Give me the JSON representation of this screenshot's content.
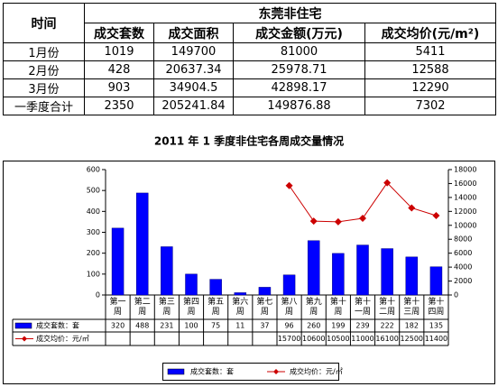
{
  "table": {
    "header": {
      "time": "时间",
      "group": "东莞非住宅",
      "columns": [
        "成交套数",
        "成交面积",
        "成交金额(万元)",
        "成交均价(元/m²)"
      ]
    },
    "rows": [
      [
        "1月份",
        "1019",
        "149700",
        "81000",
        "5411"
      ],
      [
        "2月份",
        "428",
        "20637.34",
        "25978.71",
        "12588"
      ],
      [
        "3月份",
        "903",
        "34904.5",
        "42898.17",
        "12290"
      ],
      [
        "一季度合计",
        "2350",
        "205241.84",
        "149876.88",
        "7302"
      ]
    ]
  },
  "chart_data": {
    "type": "combo",
    "title": "2011 年 1 季度非住宅各周成交量情况",
    "categories": [
      "第一周",
      "第二周",
      "第三周",
      "第四周",
      "第五周",
      "第六周",
      "第七周",
      "第八周",
      "第九周",
      "第十周",
      "第十一周",
      "第十二周",
      "第十三周",
      "第十四周"
    ],
    "series": [
      {
        "name": "成交套数：套",
        "type": "bar",
        "color": "#0000ff",
        "values": [
          320,
          488,
          231,
          100,
          75,
          11,
          37,
          96,
          260,
          199,
          239,
          222,
          182,
          135
        ]
      },
      {
        "name": "成交均价：元/㎡",
        "type": "line",
        "axis": "y2",
        "color": "#cc0000",
        "values": [
          null,
          null,
          null,
          null,
          null,
          null,
          null,
          15700,
          10600,
          10500,
          11000,
          16100,
          12500,
          11400
        ]
      }
    ],
    "ylim": [
      0,
      600
    ],
    "yticks": [
      0,
      100,
      200,
      300,
      400,
      500,
      600
    ],
    "y2lim": [
      0,
      18000
    ],
    "y2ticks": [
      0,
      2000,
      4000,
      6000,
      8000,
      10000,
      12000,
      14000,
      16000,
      18000
    ],
    "grid": false
  }
}
